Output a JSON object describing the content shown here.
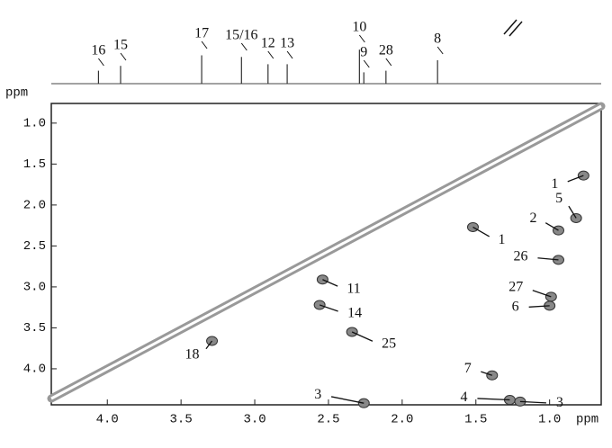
{
  "chart_data": {
    "type": "contour",
    "x_label": "ppm",
    "y_label": "ppm",
    "xlim": [
      4.38,
      0.65
    ],
    "ylim": [
      0.76,
      4.44
    ],
    "xticks": [
      {
        "value": 4,
        "label": "4.0"
      },
      3.5,
      {
        "value": 3,
        "label": "3.0"
      },
      2.5,
      {
        "value": 2,
        "label": "2.0"
      },
      1.5,
      {
        "value": 1,
        "label": "1.0"
      }
    ],
    "yticks": [
      {
        "value": 1,
        "label": "1.0"
      },
      1.5,
      {
        "value": 2,
        "label": "2.0"
      },
      2.5,
      {
        "value": 3,
        "label": "3.0"
      },
      3.5,
      {
        "value": 4,
        "label": "4.0"
      }
    ],
    "projection_peaks": [
      {
        "label": "16",
        "x": 4.06
      },
      {
        "label": "15",
        "x": 3.91
      },
      {
        "label": "17",
        "x": 3.36
      },
      {
        "label": "15/16",
        "x": 3.09
      },
      {
        "label": "12",
        "x": 2.91
      },
      {
        "label": "13",
        "x": 2.78
      },
      {
        "label": "10",
        "x": 2.29
      },
      {
        "label": "9",
        "x": 2.26
      },
      {
        "label": "28",
        "x": 2.11
      },
      {
        "label": "8",
        "x": 1.76
      }
    ],
    "cross_peaks": [
      {
        "label": "1",
        "x": 0.77,
        "y": 1.64
      },
      {
        "label": "1",
        "x": 1.52,
        "y": 2.27
      },
      {
        "label": "5",
        "x": 0.82,
        "y": 2.16
      },
      {
        "label": "2",
        "x": 0.94,
        "y": 2.31
      },
      {
        "label": "26",
        "x": 0.94,
        "y": 2.67
      },
      {
        "label": "27",
        "x": 0.99,
        "y": 3.12
      },
      {
        "label": "6",
        "x": 1.0,
        "y": 3.23
      },
      {
        "label": "11",
        "x": 2.54,
        "y": 2.91
      },
      {
        "label": "14",
        "x": 2.56,
        "y": 3.22
      },
      {
        "label": "25",
        "x": 2.34,
        "y": 3.55
      },
      {
        "label": "18",
        "x": 3.29,
        "y": 3.66
      },
      {
        "label": "7",
        "x": 1.39,
        "y": 4.08
      },
      {
        "label": "3",
        "x": 2.26,
        "y": 4.42
      },
      {
        "label": "4",
        "x": 1.27,
        "y": 4.38
      },
      {
        "label": "3",
        "x": 1.2,
        "y": 4.4
      }
    ]
  }
}
